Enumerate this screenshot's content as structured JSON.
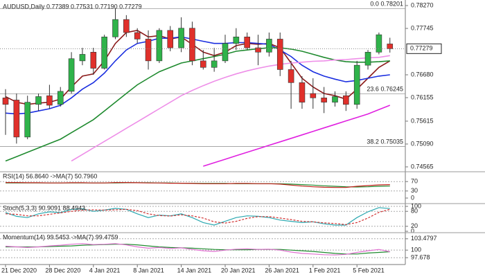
{
  "chart_data": [
    {
      "type": "candlestick",
      "title": "AUDUSD,Daily  0.77389 0.77531 0.77190 0.77279",
      "categories": [
        "21 Dec 2020",
        null,
        null,
        null,
        "28 Dec 2020",
        null,
        null,
        null,
        "4 Jan 2021",
        null,
        null,
        null,
        "8 Jan 2021",
        null,
        null,
        null,
        "14 Jan 2021",
        null,
        null,
        null,
        "20 Jan 2021",
        null,
        null,
        null,
        "26 Jan 2021",
        null,
        null,
        null,
        "1 Feb 2021",
        null,
        null,
        null,
        "5 Feb 2021",
        null,
        null,
        null
      ],
      "open": [
        0.7615,
        0.761,
        0.7525,
        0.76,
        0.762,
        0.76,
        0.763,
        0.77,
        0.772,
        0.7683,
        0.7755,
        0.7795,
        0.7765,
        0.775,
        0.77,
        0.777,
        0.773,
        0.7775,
        0.77,
        0.7685,
        0.77,
        0.774,
        0.7755,
        0.773,
        0.772,
        0.775,
        0.768,
        0.765,
        0.7625,
        0.7615,
        0.7605,
        0.762,
        0.76,
        0.769,
        0.772,
        0.77389
      ],
      "high": [
        0.7635,
        0.7625,
        0.762,
        0.7625,
        0.7645,
        0.764,
        0.772,
        0.773,
        0.773,
        0.776,
        0.782,
        0.7805,
        0.7775,
        0.777,
        0.7775,
        0.778,
        0.78,
        0.779,
        0.7725,
        0.773,
        0.776,
        0.7775,
        0.7765,
        0.776,
        0.7765,
        0.7765,
        0.77,
        0.7665,
        0.766,
        0.764,
        0.763,
        0.763,
        0.77,
        0.7725,
        0.7765,
        0.77531
      ],
      "low": [
        0.753,
        0.751,
        0.752,
        0.7585,
        0.759,
        0.7595,
        0.7625,
        0.769,
        0.7668,
        0.768,
        0.775,
        0.7755,
        0.774,
        0.768,
        0.7695,
        0.7722,
        0.772,
        0.769,
        0.768,
        0.7675,
        0.7695,
        0.7725,
        0.7725,
        0.769,
        0.771,
        0.7665,
        0.759,
        0.759,
        0.759,
        0.758,
        0.7595,
        0.7585,
        0.759,
        0.768,
        0.7715,
        0.7719
      ],
      "close": [
        0.76,
        0.7525,
        0.7605,
        0.7618,
        0.7598,
        0.763,
        0.7705,
        0.7715,
        0.7683,
        0.7755,
        0.7795,
        0.7765,
        0.775,
        0.77,
        0.777,
        0.773,
        0.7775,
        0.77,
        0.7685,
        0.77,
        0.774,
        0.7755,
        0.773,
        0.772,
        0.775,
        0.768,
        0.765,
        0.7605,
        0.7615,
        0.7605,
        0.7618,
        0.76,
        0.769,
        0.772,
        0.776,
        0.77279
      ],
      "up_color": "#2fb34a",
      "down_color": "#e0302b",
      "series": [
        {
          "color": "#8b1a1a",
          "values": [
            0.7618,
            0.7605,
            0.76,
            0.7603,
            0.7605,
            0.7612,
            0.764,
            0.7665,
            0.767,
            0.77,
            0.774,
            0.7765,
            0.777,
            0.7755,
            0.7758,
            0.775,
            0.7755,
            0.7738,
            0.772,
            0.7712,
            0.772,
            0.7735,
            0.774,
            0.7738,
            0.774,
            0.773,
            0.7695,
            0.766,
            0.764,
            0.7625,
            0.762,
            0.7612,
            0.7635,
            0.766,
            0.7685,
            0.77
          ]
        },
        {
          "color": "#1a2ee0",
          "values": [
            0.758,
            0.7578,
            0.758,
            0.7585,
            0.759,
            0.7598,
            0.7615,
            0.7635,
            0.765,
            0.7672,
            0.77,
            0.7725,
            0.774,
            0.7745,
            0.7752,
            0.7752,
            0.7755,
            0.775,
            0.7745,
            0.774,
            0.774,
            0.7742,
            0.7742,
            0.774,
            0.7738,
            0.7725,
            0.771,
            0.769,
            0.7675,
            0.7665,
            0.7658,
            0.7652,
            0.7655,
            0.766,
            0.7665,
            0.7668
          ]
        },
        {
          "color": "#1e8a2e",
          "values": [
            0.747,
            0.748,
            0.749,
            0.75,
            0.751,
            0.752,
            0.7535,
            0.755,
            0.7565,
            0.7585,
            0.7605,
            0.7625,
            0.7645,
            0.766,
            0.7675,
            0.7685,
            0.7695,
            0.77,
            0.7705,
            0.771,
            0.7715,
            0.7722,
            0.7725,
            0.7728,
            0.773,
            0.773,
            0.7727,
            0.7722,
            0.7715,
            0.7708,
            0.7702,
            0.7698,
            0.7697,
            0.7697,
            0.7698,
            0.77
          ]
        },
        {
          "color": "#ee8ee8",
          "values": [
            null,
            null,
            null,
            null,
            null,
            null,
            0.747,
            0.7485,
            0.75,
            0.7515,
            0.753,
            0.7545,
            0.756,
            0.7575,
            0.759,
            0.7605,
            0.762,
            0.7632,
            0.7643,
            0.7653,
            0.7662,
            0.767,
            0.7677,
            0.7683,
            0.7688,
            0.7692,
            0.7695,
            0.7697,
            0.7699,
            0.77,
            0.7702,
            0.7703,
            0.7705,
            0.7707,
            0.7708,
            0.7712
          ]
        },
        {
          "color": "#e020e0",
          "values": [
            null,
            null,
            null,
            null,
            null,
            null,
            null,
            null,
            null,
            null,
            null,
            null,
            null,
            null,
            null,
            null,
            null,
            null,
            0.7458,
            0.7466,
            0.7474,
            0.7482,
            0.749,
            0.7498,
            0.7506,
            0.7514,
            0.7522,
            0.753,
            0.7538,
            0.7546,
            0.7554,
            0.7562,
            0.757,
            0.7578,
            0.7588,
            0.7598
          ]
        }
      ],
      "fib_levels": [
        {
          "ratio": "0.0",
          "price": 0.78201
        },
        {
          "ratio": "23.6",
          "price": 0.76245
        },
        {
          "ratio": "38.2",
          "price": 0.75035
        }
      ],
      "last_price": {
        "value": 0.77279,
        "label": "0.77279"
      },
      "ylim": [
        0.74485,
        0.7835
      ],
      "yticks": [
        {
          "value": 0.7827,
          "label": "0.78270"
        },
        0.77745,
        {
          "value": 0.7668,
          "label": "0.76680"
        },
        0.76155,
        0.75615,
        {
          "value": 0.7509,
          "label": "0.75090"
        },
        0.74565
      ]
    },
    {
      "type": "line",
      "title": "RSI(14) 56.8640 ->MA(7) 50.7960",
      "series": [
        {
          "color": "#1e8a2e",
          "values": [
            64,
            64,
            64,
            64,
            64,
            64,
            64,
            64,
            64,
            64,
            64,
            65,
            65,
            65,
            64,
            64,
            63,
            63,
            62,
            62,
            62,
            61,
            61,
            61,
            61,
            61,
            59,
            57,
            55,
            52,
            50,
            48,
            47,
            48,
            50,
            51
          ]
        },
        {
          "color": "#c0201a",
          "values": [
            66,
            66,
            65,
            65,
            64,
            64,
            65,
            65,
            64,
            64,
            66,
            66,
            65,
            64,
            64,
            63,
            63,
            62,
            61,
            61,
            61,
            62,
            62,
            61,
            61,
            59,
            55,
            51,
            48,
            46,
            45,
            45,
            50,
            53,
            56,
            57
          ]
        }
      ],
      "ylim": [
        0,
        100
      ],
      "yticks": [
        70,
        30,
        0
      ]
    },
    {
      "type": "line",
      "title": "Stoch(5,3,3) 90.9091 88.4943",
      "series": [
        {
          "color": "#2aa8b0",
          "values": [
            75,
            60,
            55,
            70,
            78,
            75,
            88,
            90,
            80,
            85,
            92,
            88,
            70,
            55,
            65,
            62,
            70,
            55,
            35,
            25,
            40,
            55,
            62,
            60,
            55,
            45,
            40,
            35,
            38,
            30,
            25,
            25,
            55,
            78,
            95,
            91
          ]
        },
        {
          "color": "#d03030",
          "dashed": true,
          "values": [
            70,
            68,
            62,
            62,
            68,
            74,
            80,
            85,
            86,
            85,
            86,
            88,
            83,
            70,
            63,
            61,
            66,
            62,
            53,
            38,
            33,
            40,
            52,
            59,
            59,
            53,
            47,
            40,
            38,
            34,
            31,
            27,
            35,
            53,
            76,
            88
          ]
        }
      ],
      "ylim": [
        0,
        100
      ],
      "yticks": [
        100,
        80,
        20,
        0
      ]
    },
    {
      "type": "line",
      "title": "Momentum(14) 99.5453 ->MA(7) 99.4759",
      "series": [
        {
          "color": "#1e8a2e",
          "values": [
            101.0,
            101.0,
            101.0,
            101.0,
            101.1,
            101.2,
            101.3,
            101.5,
            101.6,
            101.7,
            101.8,
            101.8,
            101.6,
            101.3,
            101.0,
            100.8,
            100.7,
            100.6,
            100.4,
            100.2,
            100.1,
            100.1,
            100.1,
            100.2,
            100.2,
            100.2,
            100.0,
            99.8,
            99.6,
            99.3,
            99.0,
            98.8,
            98.8,
            99.1,
            99.3,
            99.5
          ]
        },
        {
          "color": "#e070d0",
          "values": [
            101.2,
            101.0,
            100.8,
            101.0,
            101.3,
            101.5,
            101.8,
            102.0,
            101.7,
            101.8,
            102.0,
            101.6,
            101.0,
            100.6,
            100.8,
            100.5,
            100.7,
            100.2,
            99.8,
            99.6,
            100.0,
            100.3,
            100.4,
            100.2,
            100.3,
            100.0,
            99.4,
            99.0,
            98.8,
            98.6,
            98.5,
            98.7,
            99.3,
            99.8,
            100.2,
            99.5
          ]
        }
      ],
      "ylim": [
        96.0,
        104.5
      ],
      "yticks": [
        103.4797,
        100,
        97.678
      ]
    }
  ]
}
